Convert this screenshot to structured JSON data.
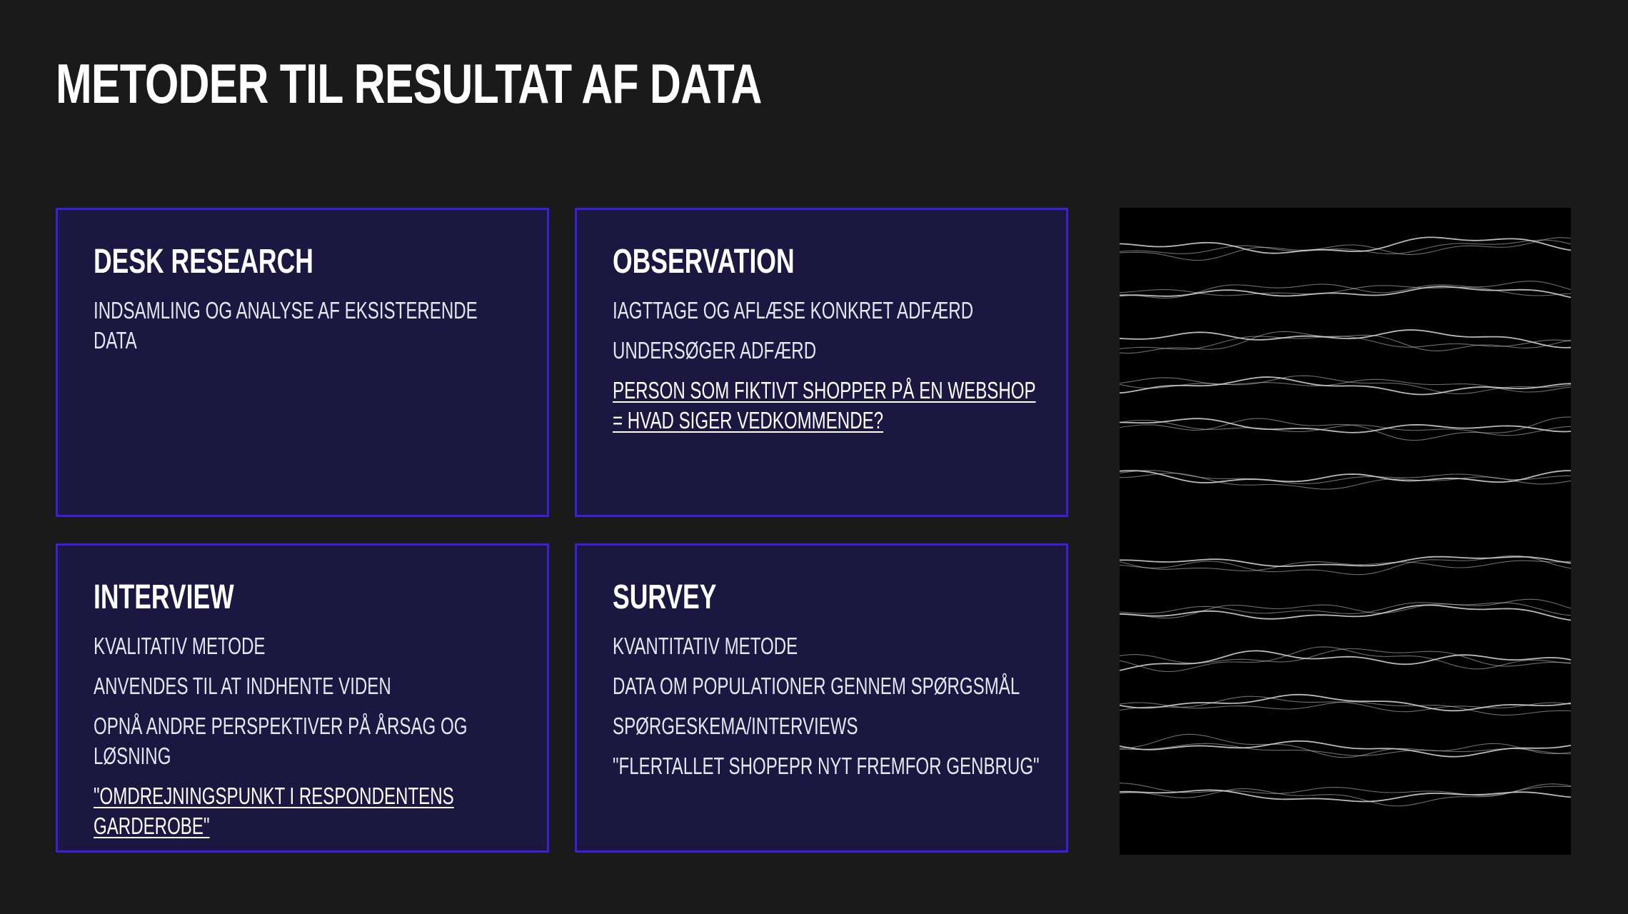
{
  "slide": {
    "title": "Metoder til resultat af data"
  },
  "cards": [
    {
      "title": "Desk research",
      "lines": [
        {
          "text": "Indsamling og analyse af eksisterende data",
          "link": false
        }
      ]
    },
    {
      "title": "Observation",
      "lines": [
        {
          "text": "Iagttage og aflæse konkret adfærd",
          "link": false
        },
        {
          "text": "Undersøger adfærd",
          "link": false
        },
        {
          "text": "Person som fiktivt shopper på en webshop = hvad siger vedkommende?",
          "link": true
        }
      ]
    },
    {
      "title": "Interview",
      "lines": [
        {
          "text": "Kvalitativ metode",
          "link": false
        },
        {
          "text": "Anvendes til at indhente viden",
          "link": false
        },
        {
          "text": "Opnå andre perspektiver på årsag og løsning",
          "link": false
        },
        {
          "text": "\"Omdrejningspunkt i respondentens garderobe\"",
          "link": true
        }
      ]
    },
    {
      "title": "Survey",
      "lines": [
        {
          "text": "Kvantitativ metode",
          "link": false
        },
        {
          "text": "Data om populationer gennem spørgsmål",
          "link": false
        },
        {
          "text": "Spørgeskema/interviews",
          "link": false
        },
        {
          "text": "\"Flertallet shopepr nyt fremfor genbrug\"",
          "link": false
        }
      ]
    }
  ],
  "colors": {
    "background": "#1a1a1a",
    "card_fill": "#1c1740",
    "card_border": "#3a20d8",
    "text": "#ffffff",
    "image_background": "#000000",
    "wave_stroke": "#d9d9d9"
  },
  "image": {
    "icon": "abstract-wave-lines-image"
  }
}
